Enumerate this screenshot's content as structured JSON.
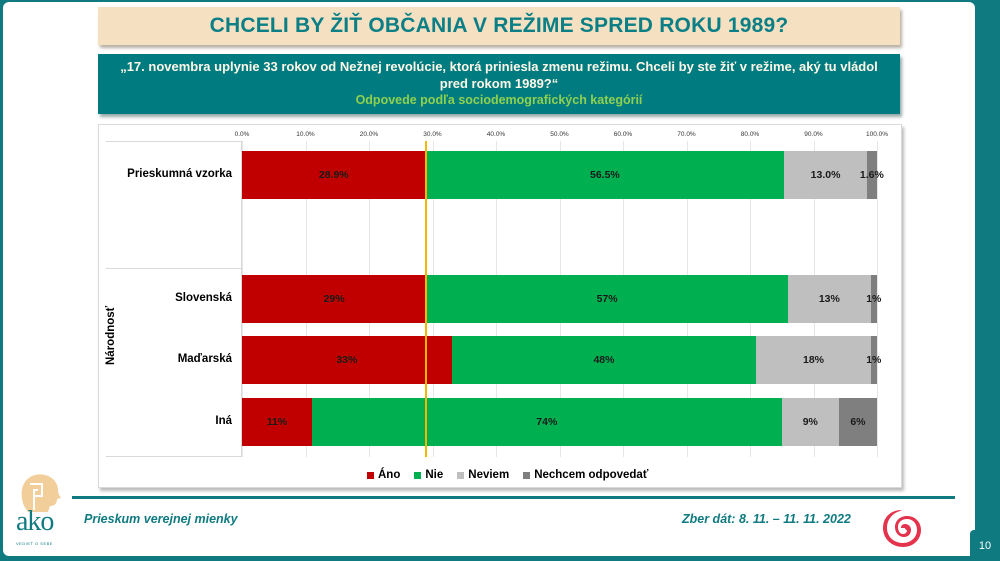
{
  "title": "CHCELI BY ŽIŤ OBČANIA V REŽIME SPRED ROKU 1989?",
  "question": {
    "line1": "„17. novembra uplynie 33 rokov od Nežnej revolúcie, ktorá priniesla zmenu režimu. Chceli by ste žiť v režime, aký tu vládol",
    "line2": "pred rokom 1989?“",
    "subtitle": "Odpovede podľa sociodemografických kategórií"
  },
  "colors": {
    "ano": "#c00000",
    "nie": "#00b050",
    "neviem": "#bfbfbf",
    "nechcem": "#7f7f7f",
    "reference_line": "#f5b800",
    "accent": "#0f7a80"
  },
  "chart_data": {
    "type": "bar",
    "orientation": "horizontal-stacked-100",
    "title": "CHCELI BY ŽIŤ OBČANIA V REŽIME SPRED ROKU 1989?",
    "xlabel": "",
    "ylabel": "",
    "xlim": [
      0,
      100
    ],
    "x_ticks": [
      "0.0%",
      "10.0%",
      "20.0%",
      "30.0%",
      "40.0%",
      "50.0%",
      "60.0%",
      "70.0%",
      "80.0%",
      "90.0%",
      "100.0%"
    ],
    "grid": true,
    "legend_position": "bottom",
    "reference_line": {
      "value": 28.9,
      "color": "#f5b800"
    },
    "categories": [
      "Prieskumná vzorka",
      "Slovenská",
      "Maďarská",
      "Iná"
    ],
    "group_labels": [
      {
        "label": "Národnosť",
        "categories": [
          "Slovenská",
          "Maďarská",
          "Iná"
        ]
      }
    ],
    "series": [
      {
        "name": "Áno",
        "values": [
          28.9,
          29,
          33,
          11
        ],
        "labels": [
          "28.9%",
          "29%",
          "33%",
          "11%"
        ]
      },
      {
        "name": "Nie",
        "values": [
          56.5,
          57,
          48,
          74
        ],
        "labels": [
          "56.5%",
          "57%",
          "48%",
          "74%"
        ]
      },
      {
        "name": "Neviem",
        "values": [
          13.0,
          13,
          18,
          9
        ],
        "labels": [
          "13.0%",
          "13%",
          "18%",
          "9%"
        ]
      },
      {
        "name": "Nechcem odpovedať",
        "values": [
          1.6,
          1,
          1,
          6
        ],
        "labels": [
          "1.6%",
          "1%",
          "1%",
          "6%"
        ]
      }
    ]
  },
  "rows": [
    {
      "label": "Prieskumná vzorka",
      "segs": [
        [
          "28.9%",
          28.9
        ],
        [
          "56.5%",
          56.5
        ],
        [
          "13.0%",
          13.0
        ],
        [
          "1.6%",
          1.6
        ]
      ]
    },
    {
      "label": "Slovenská",
      "segs": [
        [
          "29%",
          29
        ],
        [
          "57%",
          57
        ],
        [
          "13%",
          13
        ],
        [
          "1%",
          1
        ]
      ]
    },
    {
      "label": "Maďarská",
      "segs": [
        [
          "33%",
          33
        ],
        [
          "48%",
          48
        ],
        [
          "18%",
          18
        ],
        [
          "1%",
          1
        ]
      ]
    },
    {
      "label": "Iná",
      "segs": [
        [
          "11%",
          11
        ],
        [
          "74%",
          74
        ],
        [
          "9%",
          9
        ],
        [
          "6%",
          6
        ]
      ]
    }
  ],
  "group_label": "Národnosť",
  "legend": [
    "Áno",
    "Nie",
    "Neviem",
    "Nechcem odpovedať"
  ],
  "footer": {
    "left": "Prieskum verejnej mienky",
    "right": "Zber dát: 8. 11. – 11. 11. 2022",
    "page": "10",
    "logo_word": "ako",
    "logo_tagline": "VEDIEŤ O SEBE"
  }
}
